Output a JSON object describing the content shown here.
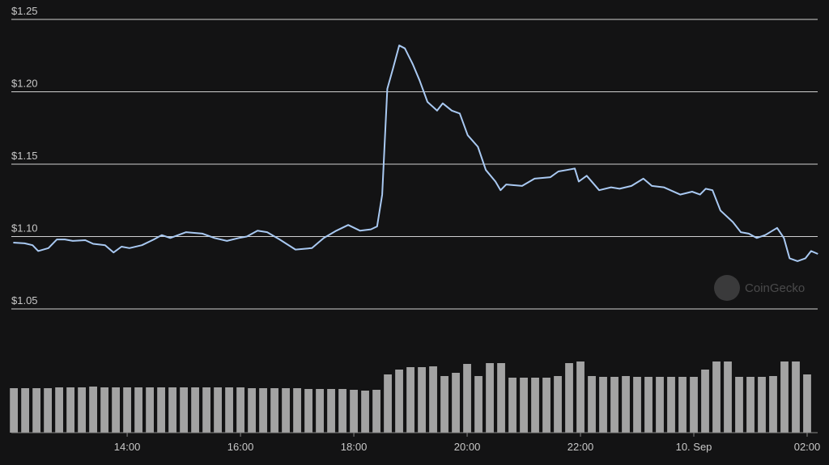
{
  "chart_data": {
    "type": "line",
    "watermark": "CoinGecko",
    "xlim": [
      11.97,
      26.2
    ],
    "xticks": [
      {
        "value": 14,
        "label": "14:00"
      },
      {
        "value": 16,
        "label": "16:00"
      },
      {
        "value": 18,
        "label": "18:00"
      },
      {
        "value": 20,
        "label": "20:00"
      },
      {
        "value": 22,
        "label": "22:00"
      },
      {
        "value": 24,
        "label": "10. Sep"
      },
      {
        "value": 26,
        "label": "02:00"
      }
    ],
    "ylim": [
      1.05,
      1.25
    ],
    "yticks": [
      {
        "value": 1.05,
        "label": "$1.05"
      },
      {
        "value": 1.1,
        "label": "$1.10"
      },
      {
        "value": 1.15,
        "label": "$1.15"
      },
      {
        "value": 1.2,
        "label": "$1.20"
      },
      {
        "value": 1.25,
        "label": "$1.25"
      }
    ],
    "grid": true,
    "x": [
      11.99,
      12.19,
      12.33,
      12.43,
      12.61,
      12.76,
      12.9,
      13.04,
      13.26,
      13.4,
      13.61,
      13.76,
      13.9,
      14.04,
      14.26,
      14.47,
      14.61,
      14.76,
      15.04,
      15.33,
      15.54,
      15.76,
      15.97,
      16.11,
      16.3,
      16.47,
      16.69,
      16.97,
      17.26,
      17.47,
      17.69,
      17.9,
      18.11,
      18.3,
      18.41,
      18.5,
      18.59,
      18.69,
      18.8,
      18.9,
      19.04,
      19.16,
      19.3,
      19.47,
      19.57,
      19.73,
      19.87,
      20.01,
      20.19,
      20.33,
      20.5,
      20.59,
      20.69,
      20.97,
      21.19,
      21.47,
      21.61,
      21.76,
      21.9,
      21.97,
      22.11,
      22.33,
      22.54,
      22.69,
      22.9,
      23.11,
      23.26,
      23.47,
      23.76,
      23.97,
      24.11,
      24.21,
      24.33,
      24.47,
      24.69,
      24.83,
      24.97,
      25.11,
      25.26,
      25.47,
      25.59,
      25.69,
      25.83,
      25.97,
      26.07,
      26.19
    ],
    "series": [
      {
        "color": "#a9c9f2",
        "values": [
          1.0958,
          1.0953,
          1.094,
          1.09,
          1.092,
          1.098,
          1.098,
          1.097,
          1.0975,
          1.095,
          1.094,
          1.089,
          1.093,
          1.092,
          1.094,
          1.098,
          1.101,
          1.099,
          1.103,
          1.102,
          1.099,
          1.097,
          1.099,
          1.1,
          1.104,
          1.103,
          1.098,
          1.091,
          1.092,
          1.099,
          1.104,
          1.108,
          1.104,
          1.105,
          1.107,
          1.129,
          1.202,
          1.216,
          1.232,
          1.23,
          1.219,
          1.208,
          1.193,
          1.187,
          1.192,
          1.187,
          1.185,
          1.17,
          1.162,
          1.146,
          1.138,
          1.132,
          1.136,
          1.135,
          1.14,
          1.141,
          1.145,
          1.146,
          1.147,
          1.138,
          1.142,
          1.132,
          1.134,
          1.133,
          1.135,
          1.14,
          1.135,
          1.134,
          1.129,
          1.131,
          1.129,
          1.133,
          1.132,
          1.118,
          1.11,
          1.103,
          1.102,
          1.099,
          1.101,
          1.106,
          1.099,
          1.085,
          1.083,
          1.085,
          1.09,
          1.088
        ]
      }
    ],
    "volume": {
      "color": "#a3a3a3",
      "y2lim": [
        0,
        100
      ],
      "x": [
        12,
        12.2,
        12.4,
        12.6,
        12.8,
        13,
        13.2,
        13.4,
        13.6,
        13.8,
        14,
        14.2,
        14.4,
        14.6,
        14.8,
        15,
        15.2,
        15.4,
        15.6,
        15.8,
        16,
        16.2,
        16.4,
        16.6,
        16.8,
        17,
        17.2,
        17.4,
        17.6,
        17.8,
        18,
        18.2,
        18.4,
        18.6,
        18.8,
        19,
        19.2,
        19.4,
        19.6,
        19.8,
        20,
        20.2,
        20.4,
        20.6,
        20.8,
        21,
        21.2,
        21.4,
        21.6,
        21.8,
        22,
        22.2,
        22.4,
        22.6,
        22.8,
        23,
        23.2,
        23.4,
        23.6,
        23.8,
        24,
        24.2,
        24.4,
        24.6,
        24.8,
        25,
        25.2,
        25.4,
        25.6,
        25.8,
        26
      ],
      "values": [
        55,
        55,
        55,
        55,
        56,
        56,
        56,
        57,
        56,
        56,
        56,
        56,
        56,
        56,
        56,
        56,
        56,
        56,
        56,
        56,
        56,
        55,
        55,
        55,
        55,
        55,
        54,
        54,
        54,
        54,
        53,
        52,
        53,
        72,
        78,
        81,
        81,
        82,
        70,
        74,
        85,
        70,
        86,
        86,
        68,
        68,
        68,
        68,
        70,
        86,
        88,
        70,
        69,
        69,
        70,
        69,
        69,
        69,
        69,
        69,
        69,
        78,
        88,
        88,
        69,
        69,
        69,
        70,
        88,
        88,
        72
      ]
    }
  }
}
